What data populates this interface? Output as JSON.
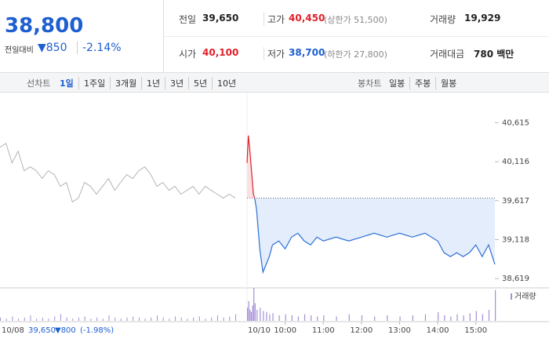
{
  "header": {
    "price": "38,800",
    "change_label": "전일대비",
    "change": "▼850",
    "rate": "-2.14%"
  },
  "stats": [
    {
      "label": "전일",
      "value": "39,650"
    },
    {
      "label": "고가",
      "value": "40,450",
      "note": "(상한가 51,500)"
    },
    {
      "label": "거래량",
      "value": "19,929"
    },
    {
      "label": "시가",
      "value": "40,100"
    },
    {
      "label": "저가",
      "value": "38,700",
      "note": "(하한가 27,800)"
    },
    {
      "label": "거래대금",
      "value": "780 백만"
    }
  ],
  "tabs": {
    "line_label": "선차트",
    "line": [
      "1일",
      "1주일",
      "3개월",
      "1년",
      "3년",
      "5년",
      "10년"
    ],
    "candle_label": "봉차트",
    "candle": [
      "일봉",
      "주봉",
      "월봉"
    ]
  },
  "chart_data": {
    "type": "line",
    "ylim": [
      38520,
      40880
    ],
    "yticks": [
      {
        "value": 40615,
        "label": "40,615"
      },
      {
        "value": 40116,
        "label": "40,116"
      },
      {
        "value": 39617,
        "label": "39,617"
      },
      {
        "value": 39118,
        "label": "39,118"
      },
      {
        "value": 38619,
        "label": "38,619"
      }
    ],
    "xlim": [
      0,
      390
    ],
    "xticks": [
      {
        "value": 60,
        "label": "10:00"
      },
      {
        "value": 120,
        "label": "11:00"
      },
      {
        "value": 180,
        "label": "12:00"
      },
      {
        "value": 240,
        "label": "13:00"
      },
      {
        "value": 300,
        "label": "14:00"
      },
      {
        "value": 360,
        "label": "15:00"
      }
    ],
    "reference": 39650,
    "previous": {
      "date": "10/08",
      "close": "39,650",
      "change": "▼800",
      "rate": "(-1.98%)",
      "color": "#b5b5b5",
      "values": [
        40300,
        40350,
        40100,
        40250,
        40000,
        40050,
        40000,
        39900,
        40000,
        39950,
        39800,
        39850,
        39600,
        39650,
        39850,
        39800,
        39700,
        39800,
        39900,
        39750,
        39850,
        39950,
        39900,
        40000,
        40050,
        39950,
        39800,
        39850,
        39750,
        39800,
        39700,
        39750,
        39800,
        39700,
        39800,
        39750,
        39700,
        39650,
        39700,
        39650
      ]
    },
    "current_date": "10/10",
    "series": [
      {
        "color": "#2e6fd6",
        "up_color": "#e0202a",
        "x": [
          0,
          2,
          4,
          6,
          8,
          10,
          12,
          15,
          20,
          25,
          30,
          35,
          40,
          50,
          60,
          70,
          80,
          90,
          100,
          110,
          120,
          140,
          160,
          180,
          200,
          220,
          240,
          260,
          280,
          300,
          310,
          320,
          330,
          340,
          350,
          360,
          370,
          380,
          390
        ],
        "values": [
          40100,
          40450,
          40300,
          40100,
          39900,
          39700,
          39650,
          39500,
          39000,
          38700,
          38800,
          38900,
          39050,
          39100,
          39000,
          39150,
          39200,
          39100,
          39050,
          39150,
          39100,
          39150,
          39100,
          39150,
          39200,
          39150,
          39200,
          39150,
          39200,
          39100,
          38950,
          38900,
          38950,
          38900,
          38950,
          39050,
          38900,
          39050,
          38800
        ]
      }
    ],
    "volume": {
      "name": "거래량",
      "color": "#a58fd6",
      "previous": [
        3,
        2,
        4,
        2,
        3,
        5,
        2,
        3,
        2,
        4,
        6,
        3,
        2,
        3,
        4,
        2,
        3,
        2,
        5,
        3,
        2,
        3,
        4,
        3,
        2,
        3,
        5,
        3,
        2,
        4,
        3,
        2,
        3,
        4,
        2,
        3,
        5,
        3,
        4,
        6
      ],
      "today": [
        12,
        18,
        10,
        8,
        14,
        30,
        16,
        10,
        12,
        9,
        8,
        6,
        7,
        5,
        6,
        5,
        4,
        6,
        5,
        4,
        5,
        4,
        6,
        5,
        4,
        5,
        4,
        5,
        6,
        8,
        5,
        4,
        6,
        5,
        7,
        9,
        6,
        10,
        28
      ]
    }
  }
}
